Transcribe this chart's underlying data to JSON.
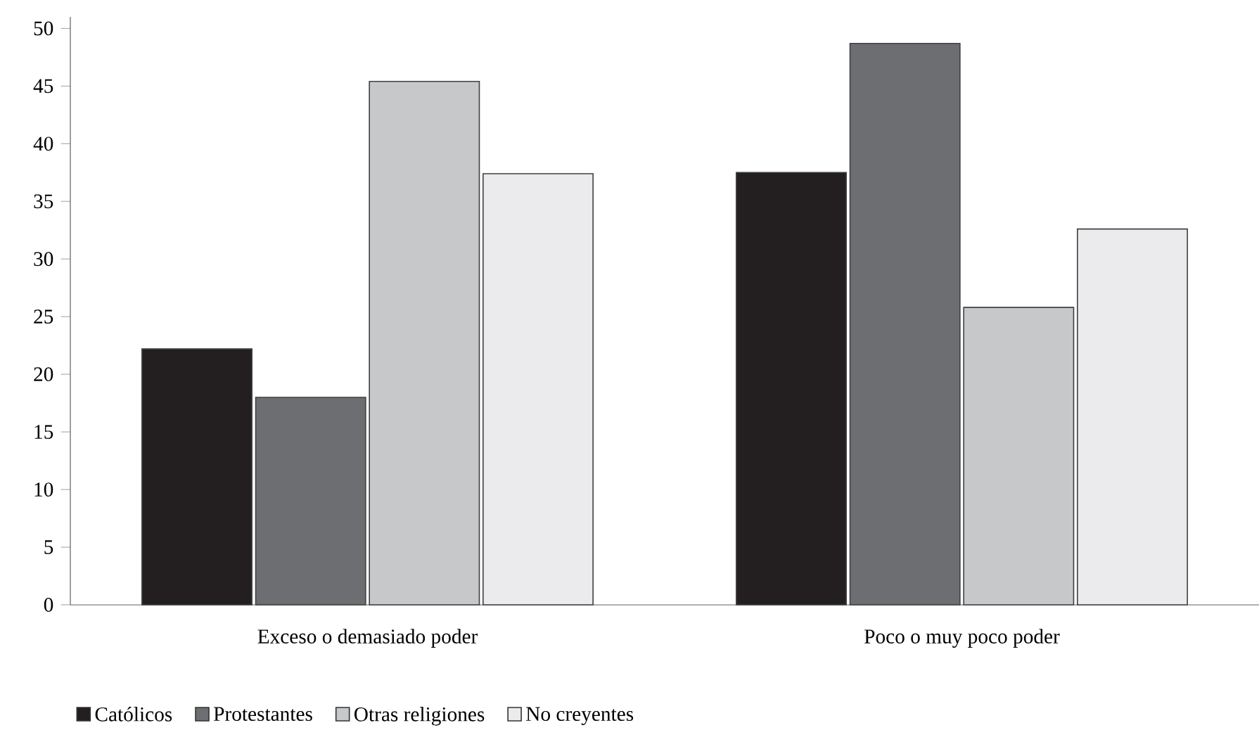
{
  "chart_data": {
    "type": "bar",
    "categories": [
      "Exceso o demasiado poder",
      "Poco o muy poco poder"
    ],
    "series": [
      {
        "name": "Católicos",
        "color": "#231f20",
        "values": [
          22.2,
          37.5
        ]
      },
      {
        "name": "Protestantes",
        "color": "#6d6e71",
        "values": [
          18.0,
          48.7
        ]
      },
      {
        "name": "Otras religiones",
        "color": "#c7c8ca",
        "values": [
          45.4,
          25.8
        ]
      },
      {
        "name": "No creyentes",
        "color": "#ebebed",
        "values": [
          37.4,
          32.6
        ]
      }
    ],
    "ylim": [
      0,
      51
    ],
    "yticks": [
      0,
      5,
      10,
      15,
      20,
      25,
      30,
      35,
      40,
      45,
      50
    ],
    "grid": false,
    "legend": "bottom left"
  }
}
